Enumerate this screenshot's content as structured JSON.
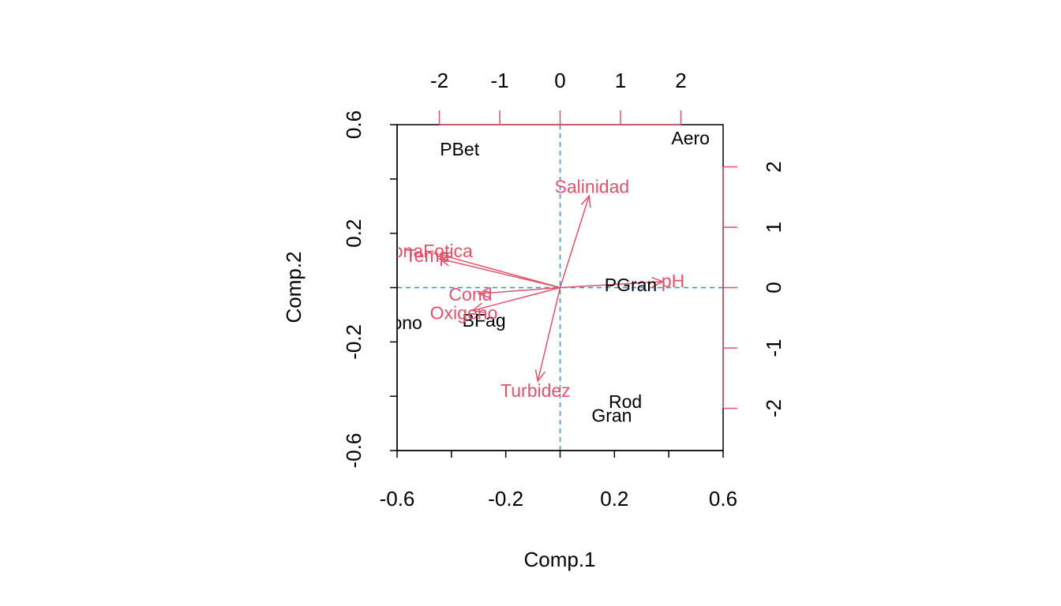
{
  "chart_data": {
    "type": "scatter",
    "subtype": "biplot",
    "title": "",
    "xlabel": "Comp.1",
    "ylabel": "Comp.2",
    "xlim": [
      -0.6,
      0.6
    ],
    "ylim": [
      -0.6,
      0.6
    ],
    "x_ticks": [
      "-0.6",
      "-0.2",
      "0.2",
      "0.6"
    ],
    "x_tick_values": [
      -0.6,
      -0.2,
      0.2,
      0.6
    ],
    "y_ticks": [
      "-0.6",
      "-0.2",
      "0.2",
      "0.6"
    ],
    "y_tick_values": [
      -0.6,
      -0.2,
      0.2,
      0.6
    ],
    "top_axis": {
      "range": [
        -2.7,
        2.7
      ],
      "ticks": [
        "-2",
        "-1",
        "0",
        "1",
        "2"
      ],
      "tick_values": [
        -2,
        -1,
        0,
        1,
        2
      ]
    },
    "right_axis": {
      "range": [
        -2.7,
        2.7
      ],
      "ticks": [
        "-2",
        "-1",
        "0",
        "1",
        "2"
      ],
      "tick_values": [
        -2,
        -1,
        0,
        1,
        2
      ]
    },
    "observations": [
      {
        "label": "PBet",
        "x": -0.37,
        "y": 0.51
      },
      {
        "label": "Aero",
        "x": 0.48,
        "y": 0.55
      },
      {
        "label": "PGran",
        "x": 0.26,
        "y": 0.01
      },
      {
        "label": "Tono",
        "x": -0.58,
        "y": -0.13
      },
      {
        "label": "BFag",
        "x": -0.28,
        "y": -0.12
      },
      {
        "label": "Rod",
        "x": 0.24,
        "y": -0.42
      },
      {
        "label": "Gran",
        "x": 0.19,
        "y": -0.47
      }
    ],
    "variables": [
      {
        "label": "Salinidad",
        "x": 0.48,
        "y": 1.52
      },
      {
        "label": "ZonaFotica",
        "x": -2.0,
        "y": 0.55
      },
      {
        "label": "Temp",
        "x": -2.0,
        "y": 0.48
      },
      {
        "label": "pH",
        "x": 1.7,
        "y": 0.1
      },
      {
        "label": "Cond",
        "x": -1.35,
        "y": -0.1
      },
      {
        "label": "Oxigeno",
        "x": -1.45,
        "y": -0.38
      },
      {
        "label": "Turbidez",
        "x": -0.37,
        "y": -1.55
      }
    ],
    "colors": {
      "observations": "#000000",
      "variables": "#DF536B",
      "reference_lines": "#2297E6",
      "axes": "#000000"
    },
    "reference_lines": "dashed at x=0 and y=0"
  }
}
